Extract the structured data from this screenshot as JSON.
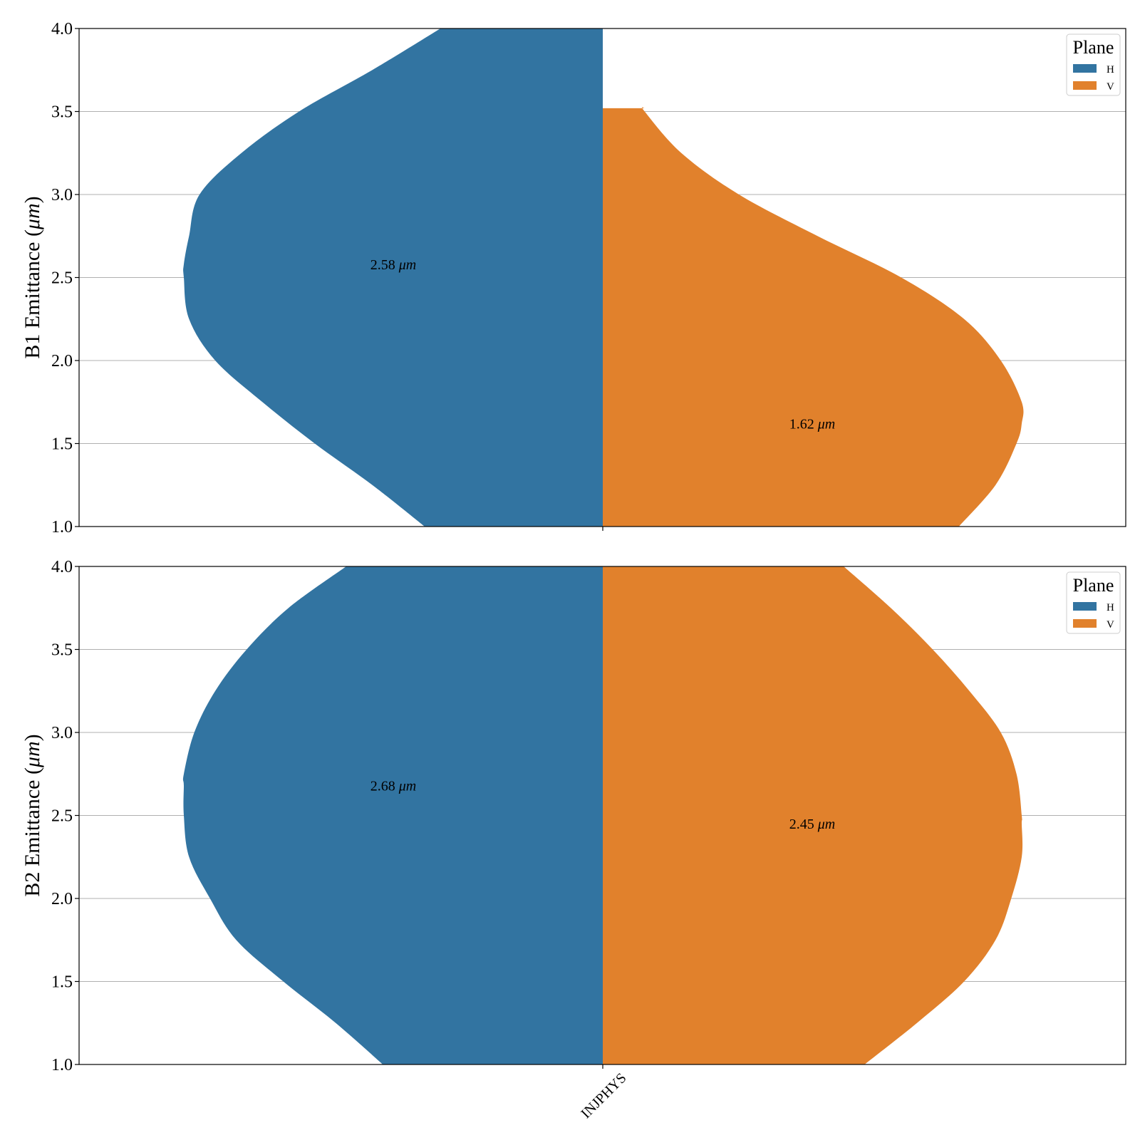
{
  "chart_data": [
    {
      "type": "violin",
      "ylabel": "B1 Emittance (",
      "ylabel_unit": "μm",
      "ylabel_close": ")",
      "ylim": [
        1.0,
        4.0
      ],
      "yticks": [
        "1.0",
        "1.5",
        "2.0",
        "2.5",
        "3.0",
        "3.5",
        "4.0"
      ],
      "ytick_values": [
        1.0,
        1.5,
        2.0,
        2.5,
        3.0,
        3.5,
        4.0
      ],
      "grid": "y",
      "categories": [
        ""
      ],
      "legend": {
        "title": "Plane",
        "placement": "top-right",
        "entries": [
          "H",
          "V"
        ]
      },
      "series": [
        {
          "name": "H",
          "color": "#3274a1",
          "median": 2.58,
          "annotation_value": "2.58",
          "annotation_unit": "μm",
          "density": [
            [
              1.0,
              0.34
            ],
            [
              1.25,
              0.44
            ],
            [
              1.5,
              0.55
            ],
            [
              1.75,
              0.65
            ],
            [
              2.0,
              0.74
            ],
            [
              2.25,
              0.79
            ],
            [
              2.5,
              0.8
            ],
            [
              2.58,
              0.8
            ],
            [
              2.75,
              0.79
            ],
            [
              3.0,
              0.77
            ],
            [
              3.25,
              0.69
            ],
            [
              3.5,
              0.58
            ],
            [
              3.75,
              0.44
            ],
            [
              4.0,
              0.31
            ]
          ]
        },
        {
          "name": "V",
          "color": "#e1812c",
          "median": 1.62,
          "annotation_value": "1.62",
          "annotation_unit": "μm",
          "density": [
            [
              1.0,
              0.68
            ],
            [
              1.25,
              0.75
            ],
            [
              1.5,
              0.79
            ],
            [
              1.62,
              0.8
            ],
            [
              1.75,
              0.8
            ],
            [
              2.0,
              0.76
            ],
            [
              2.25,
              0.69
            ],
            [
              2.5,
              0.57
            ],
            [
              2.75,
              0.41
            ],
            [
              3.0,
              0.26
            ],
            [
              3.25,
              0.15
            ],
            [
              3.5,
              0.08
            ],
            [
              3.52,
              0.08
            ]
          ]
        }
      ]
    },
    {
      "type": "violin",
      "ylabel": "B2 Emittance (",
      "ylabel_unit": "μm",
      "ylabel_close": ")",
      "ylim": [
        1.0,
        4.0
      ],
      "yticks": [
        "1.0",
        "1.5",
        "2.0",
        "2.5",
        "3.0",
        "3.5",
        "4.0"
      ],
      "ytick_values": [
        1.0,
        1.5,
        2.0,
        2.5,
        3.0,
        3.5,
        4.0
      ],
      "grid": "y",
      "categories": [
        "INJPHYS"
      ],
      "legend": {
        "title": "Plane",
        "placement": "top-right",
        "entries": [
          "H",
          "V"
        ]
      },
      "series": [
        {
          "name": "H",
          "color": "#3274a1",
          "median": 2.68,
          "annotation_value": "2.68",
          "annotation_unit": "μm",
          "density": [
            [
              1.0,
              0.42
            ],
            [
              1.25,
              0.51
            ],
            [
              1.5,
              0.61
            ],
            [
              1.75,
              0.7
            ],
            [
              2.0,
              0.75
            ],
            [
              2.25,
              0.79
            ],
            [
              2.5,
              0.8
            ],
            [
              2.68,
              0.8
            ],
            [
              2.75,
              0.8
            ],
            [
              3.0,
              0.78
            ],
            [
              3.25,
              0.74
            ],
            [
              3.5,
              0.68
            ],
            [
              3.75,
              0.6
            ],
            [
              4.0,
              0.49
            ]
          ]
        },
        {
          "name": "V",
          "color": "#e1812c",
          "median": 2.45,
          "annotation_value": "2.45",
          "annotation_unit": "μm",
          "density": [
            [
              1.0,
              0.5
            ],
            [
              1.25,
              0.6
            ],
            [
              1.5,
              0.69
            ],
            [
              1.75,
              0.75
            ],
            [
              2.0,
              0.78
            ],
            [
              2.25,
              0.8
            ],
            [
              2.45,
              0.8
            ],
            [
              2.5,
              0.8
            ],
            [
              2.75,
              0.79
            ],
            [
              3.0,
              0.76
            ],
            [
              3.25,
              0.7
            ],
            [
              3.5,
              0.63
            ],
            [
              3.75,
              0.55
            ],
            [
              4.0,
              0.46
            ]
          ]
        }
      ]
    }
  ]
}
